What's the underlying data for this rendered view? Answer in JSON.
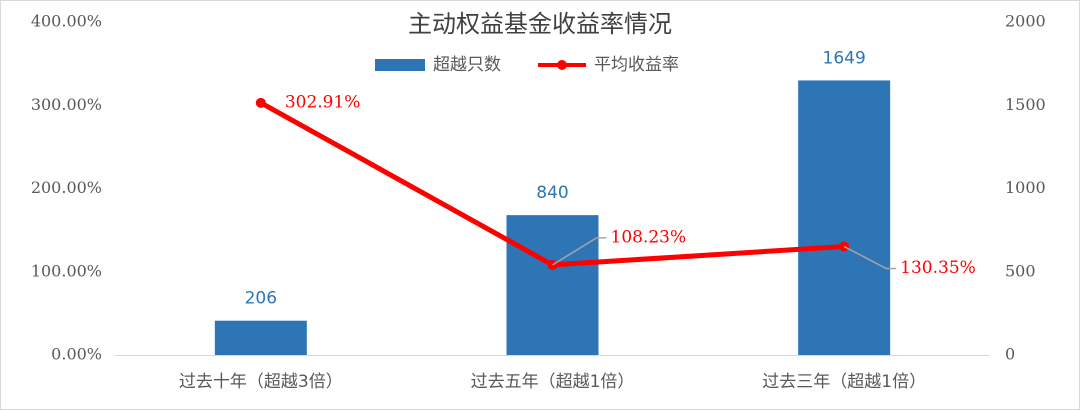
{
  "chart_data": {
    "type": "combo",
    "title": "主动权益基金收益率情况",
    "categories": [
      "过去十年（超越3倍）",
      "过去五年（超越1倍）",
      "过去三年（超越1倍）"
    ],
    "series": [
      {
        "name": "超越只数",
        "type": "bar",
        "axis": "y2",
        "color": "#2e75b6",
        "values": [
          206,
          840,
          1649
        ]
      },
      {
        "name": "平均收益率",
        "type": "line",
        "color": "#ff0000",
        "values": [
          302.91,
          108.23,
          130.35
        ],
        "value_labels": [
          "302.91%",
          "108.23%",
          "130.35%"
        ]
      }
    ],
    "ylim": [
      0,
      400
    ],
    "yticks": [
      {
        "value": 0,
        "label": "0.00%"
      },
      {
        "value": 100,
        "label": "100.00%"
      },
      {
        "value": 200,
        "label": "200.00%"
      },
      {
        "value": 300,
        "label": "300.00%"
      },
      {
        "value": 400,
        "label": "400.00%"
      }
    ],
    "y2lim": [
      0,
      2000
    ],
    "y2ticks": [
      0,
      500,
      1000,
      1500,
      2000
    ],
    "legend": "top"
  }
}
